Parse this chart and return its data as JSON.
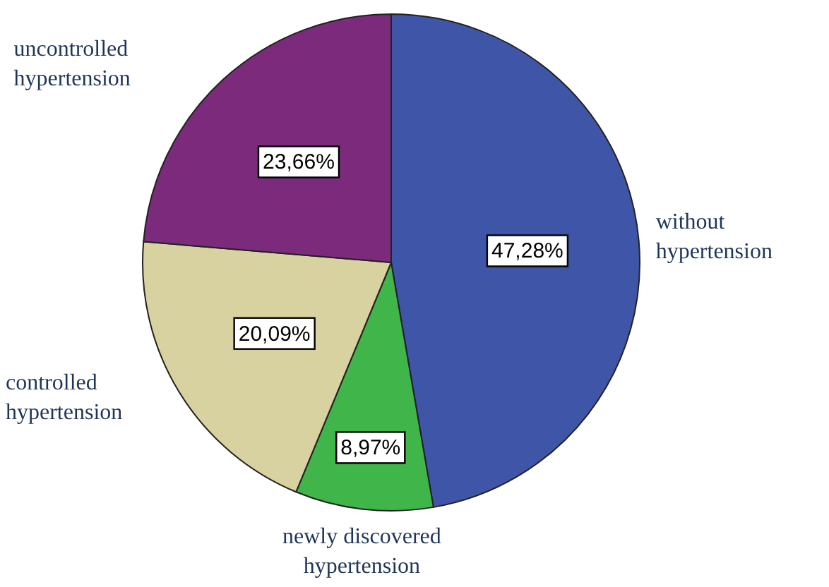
{
  "chart_data": {
    "type": "pie",
    "categories": [
      "without hypertension",
      "newly discovered hypertension",
      "controlled hypertension",
      "uncontrolled hypertension"
    ],
    "values": [
      47.28,
      8.97,
      20.09,
      23.66
    ],
    "colors": [
      "#3f56a8",
      "#3fb54a",
      "#d8d2a0",
      "#7c2a7c"
    ],
    "value_labels": [
      "47,28%",
      "8,97%",
      "20,09%",
      "23,66%"
    ]
  }
}
